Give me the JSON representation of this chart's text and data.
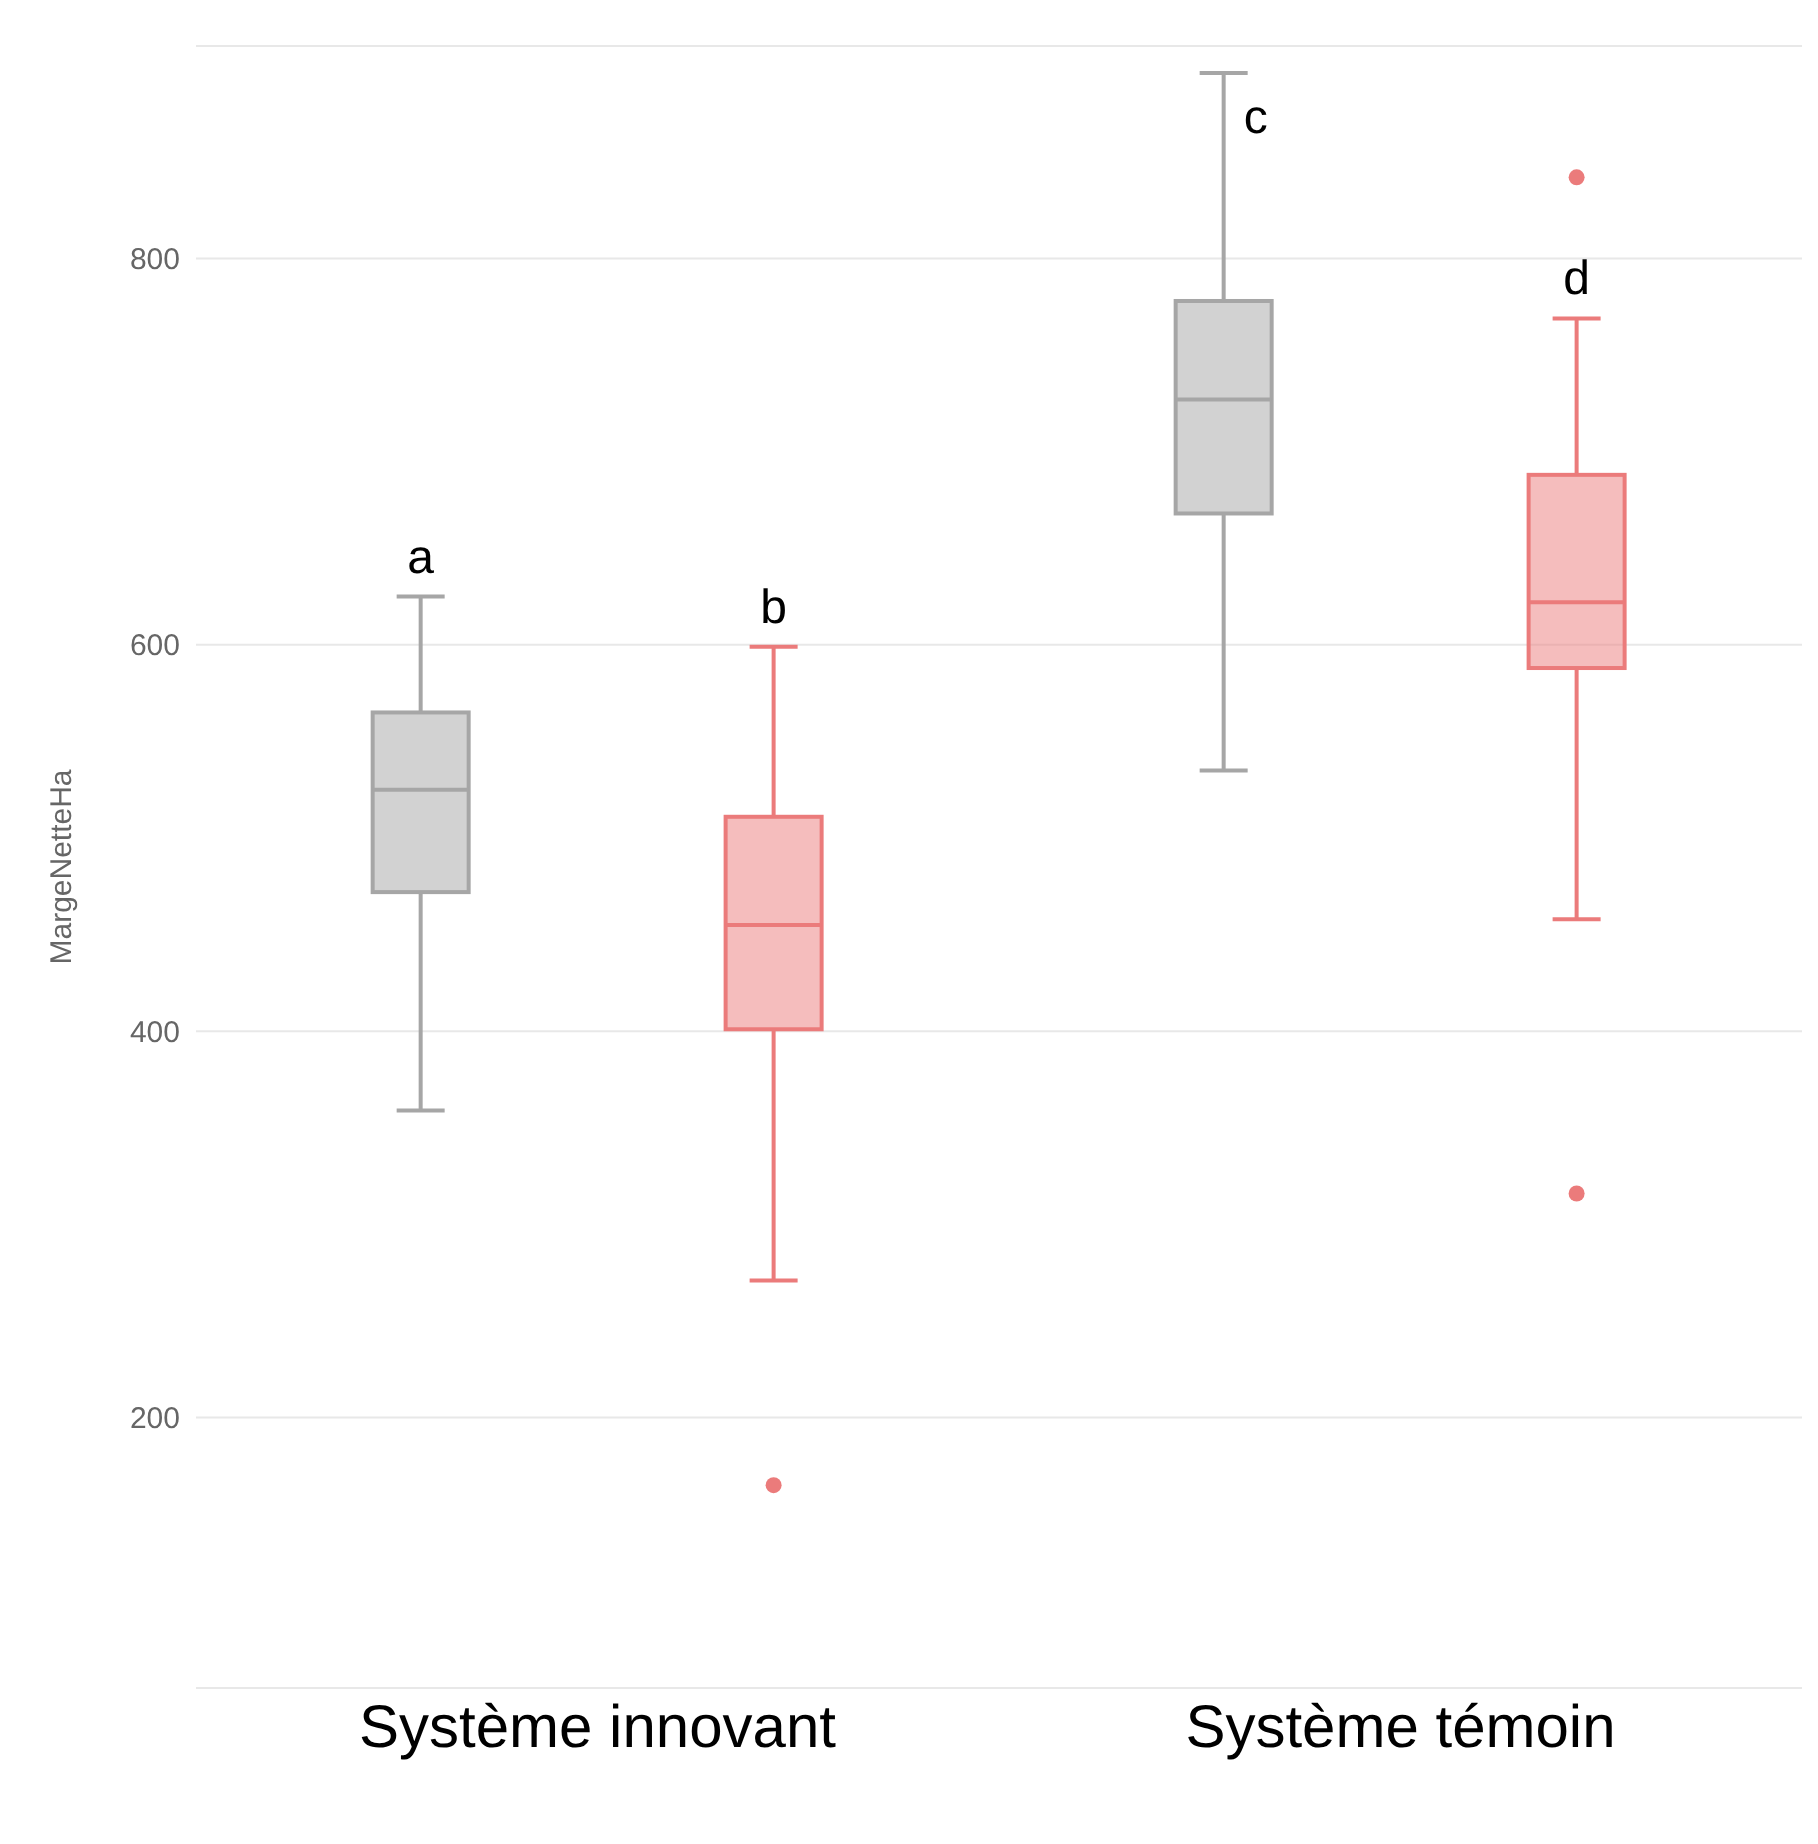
{
  "chart_data": {
    "type": "box",
    "ylabel": "MargeNetteHa",
    "categories": [
      "Système innovant",
      "Système témoin"
    ],
    "series": [
      {
        "color": "#a6a6a6",
        "boxes": [
          {
            "low": 359,
            "q1": 472,
            "median": 525,
            "q3": 565,
            "high": 625
          },
          {
            "low": 535,
            "q1": 668,
            "median": 727,
            "q3": 778,
            "high": 896
          }
        ]
      },
      {
        "color": "#eb7b7b",
        "boxes": [
          {
            "low": 271,
            "q1": 401,
            "median": 455,
            "q3": 511,
            "high": 599,
            "outliers": [
              165
            ]
          },
          {
            "low": 458,
            "q1": 588,
            "median": 622,
            "q3": 688,
            "high": 769,
            "outliers": [
              842,
              316
            ]
          }
        ]
      }
    ],
    "annotations": [
      "a",
      "b",
      "c",
      "d"
    ],
    "ylim": [
      60,
      910
    ],
    "yticks": [
      200,
      400,
      600,
      800
    ],
    "grid": "y"
  }
}
